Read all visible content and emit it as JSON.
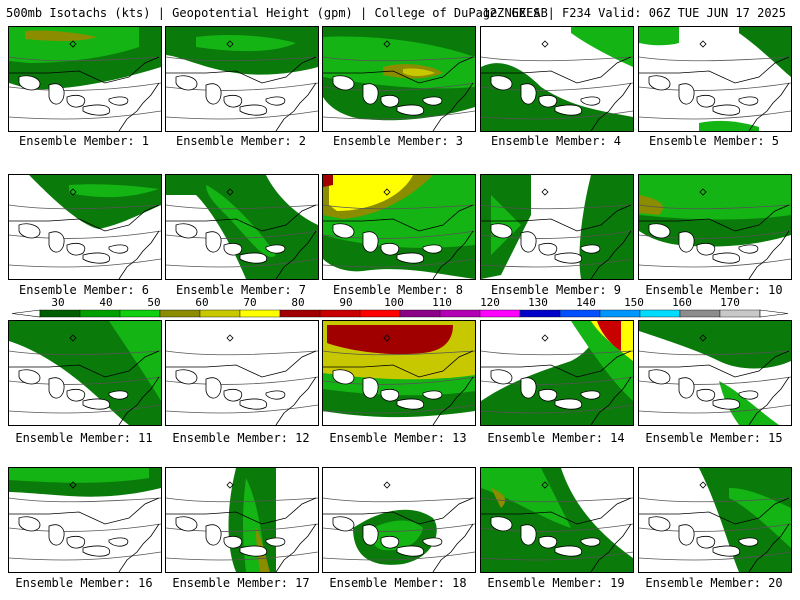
{
  "header": {
    "left": "500mb Isotachs (kts) | Geopotential Height (gpm) | College of DuPage NEXLAB",
    "right": "12Z GEFS | F234 Valid: 06Z TUE JUN 17 2025"
  },
  "legend": {
    "ticks": [
      "30",
      "40",
      "50",
      "60",
      "70",
      "80",
      "90",
      "100",
      "110",
      "120",
      "130",
      "140",
      "150",
      "160",
      "170"
    ],
    "colors": [
      "#005e00",
      "#00a000",
      "#10d010",
      "#8c8c00",
      "#c8c800",
      "#ffff00",
      "#a00000",
      "#c80000",
      "#ff0000",
      "#8c0088",
      "#b400b4",
      "#ff00ff",
      "#0000c8",
      "#0050ff",
      "#0096ff",
      "#00dcff",
      "#8c8c8c",
      "#c8c8c8"
    ]
  },
  "colors": {
    "dark_green": "#0a7a0a",
    "green": "#14b414",
    "light_green": "#28dc28",
    "olive": "#8c8c00",
    "yellow_green": "#c8c800",
    "yellow": "#ffff00",
    "dark_red": "#a00000",
    "red": "#c80000"
  },
  "panels": [
    {
      "label": "Ensemble Member: 1"
    },
    {
      "label": "Ensemble Member: 2"
    },
    {
      "label": "Ensemble Member: 3"
    },
    {
      "label": "Ensemble Member: 4"
    },
    {
      "label": "Ensemble Member: 5"
    },
    {
      "label": "Ensemble Member: 6"
    },
    {
      "label": "Ensemble Member: 7"
    },
    {
      "label": "Ensemble Member: 8"
    },
    {
      "label": "Ensemble Member: 9"
    },
    {
      "label": "Ensemble Member: 10"
    },
    {
      "label": "Ensemble Member: 11"
    },
    {
      "label": "Ensemble Member: 12"
    },
    {
      "label": "Ensemble Member: 13"
    },
    {
      "label": "Ensemble Member: 14"
    },
    {
      "label": "Ensemble Member: 15"
    },
    {
      "label": "Ensemble Member: 16"
    },
    {
      "label": "Ensemble Member: 17"
    },
    {
      "label": "Ensemble Member: 18"
    },
    {
      "label": "Ensemble Member: 19"
    },
    {
      "label": "Ensemble Member: 20"
    }
  ]
}
